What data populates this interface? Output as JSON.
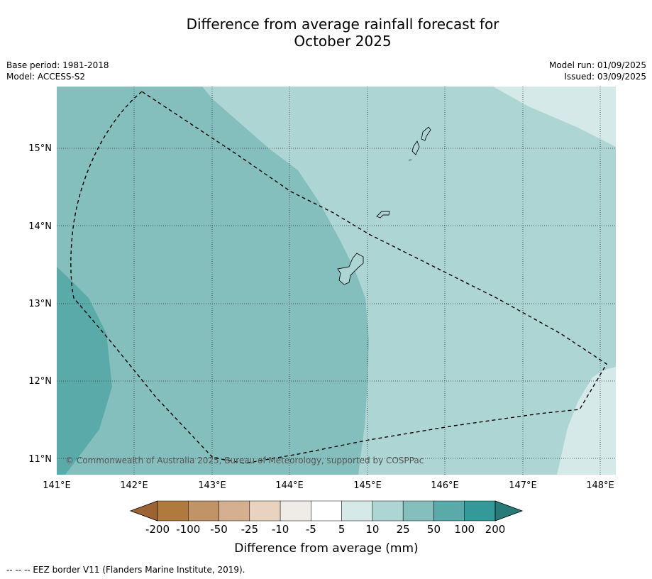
{
  "header": {
    "title_line1": "Difference from average rainfall forecast for",
    "title_line2": "October 2025"
  },
  "meta": {
    "base_period": "Base period: 1981-2018",
    "model": "Model: ACCESS-S2",
    "model_run": "Model run: 01/09/2025",
    "issued": "Issued: 03/09/2025"
  },
  "map": {
    "lon_labels": [
      "141°E",
      "142°E",
      "143°E",
      "144°E",
      "145°E",
      "146°E",
      "147°E",
      "148°E"
    ],
    "lat_labels": [
      "15°N",
      "14°N",
      "13°N",
      "12°N",
      "11°N"
    ],
    "copyright": "© Commonwealth of Australia 2025, Bureau of Meteorology, supported by COSPPac",
    "colors": {
      "c5_10": "#d5eae8",
      "c10_25": "#acd5d4",
      "c25_50": "#84bfbe",
      "c50_100": "#5aaaaa"
    }
  },
  "colorbar": {
    "ticks": [
      "-200",
      "-100",
      "-50",
      "-25",
      "-10",
      "-5",
      "5",
      "10",
      "25",
      "50",
      "100",
      "200"
    ],
    "colors": [
      "#9c6432",
      "#b07a3f",
      "#c19467",
      "#d5b090",
      "#e8d2c0",
      "#efebe7",
      "#ffffff",
      "#d5eae8",
      "#acd5d4",
      "#84bfbe",
      "#5aaaaa",
      "#339a99",
      "#267a78"
    ],
    "label": "Difference from average (mm)"
  },
  "footnote": "-- -- -- EEZ border V11 (Flanders Marine Institute, 2019)."
}
